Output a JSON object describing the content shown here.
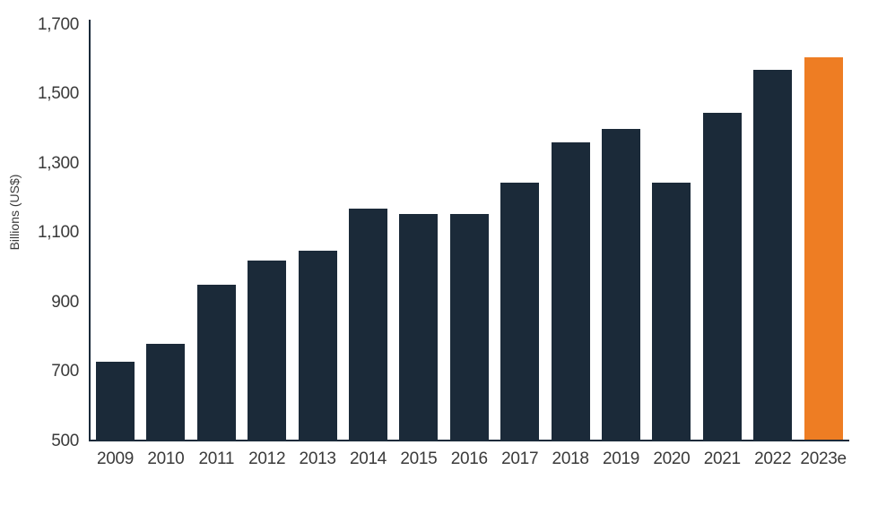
{
  "chart_data": {
    "type": "bar",
    "title": "",
    "xlabel": "",
    "ylabel": "Billions (US$)",
    "categories": [
      "2009",
      "2010",
      "2011",
      "2012",
      "2013",
      "2014",
      "2015",
      "2016",
      "2017",
      "2018",
      "2019",
      "2020",
      "2021",
      "2022",
      "2023e"
    ],
    "values": [
      725,
      775,
      945,
      1015,
      1045,
      1165,
      1150,
      1150,
      1240,
      1355,
      1395,
      1240,
      1440,
      1565,
      1600
    ],
    "ylim": [
      500,
      1700
    ],
    "ytick_step": 200,
    "ytick_labels": [
      "500",
      "700",
      "900",
      "1,100",
      "1,300",
      "1,500",
      "1,700"
    ],
    "grid": false,
    "legend": "none",
    "highlight_category": "2023e",
    "colors": {
      "bar": "#1B2A39",
      "highlight": "#EE7D23",
      "axis": "#1A2A3A",
      "text": "#3A3A3A",
      "background": "#FFFFFF"
    }
  }
}
